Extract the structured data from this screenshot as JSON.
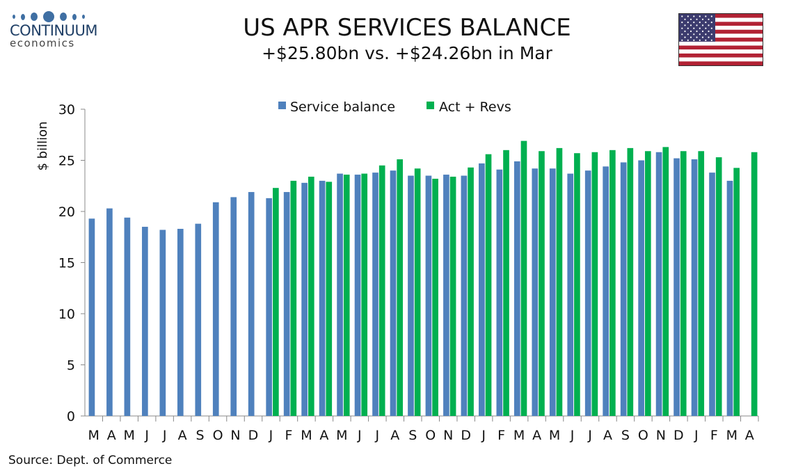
{
  "logo": {
    "name": "CONTINUUM",
    "sub": "economics"
  },
  "header": {
    "title": "US APR SERVICES BALANCE",
    "subtitle": "+$25.80bn vs. +$24.26bn in Mar"
  },
  "flag": "us-flag-icon",
  "source": "Source: Dept. of Commerce",
  "colors": {
    "blue": "#4f81bd",
    "green": "#00b050"
  },
  "chart_data": {
    "type": "bar",
    "title": "US APR SERVICES BALANCE",
    "xlabel": "",
    "ylabel": "$ billion",
    "ylim": [
      0,
      30
    ],
    "yticks": [
      0,
      5,
      10,
      15,
      20,
      25,
      30
    ],
    "legend": "top-center",
    "categories": [
      "M",
      "A",
      "M",
      "J",
      "J",
      "A",
      "S",
      "O",
      "N",
      "D",
      "J",
      "F",
      "M",
      "A",
      "M",
      "J",
      "J",
      "A",
      "S",
      "O",
      "N",
      "D",
      "J",
      "F",
      "M",
      "A",
      "M",
      "J",
      "J",
      "A",
      "S",
      "O",
      "N",
      "D",
      "J",
      "F",
      "M",
      "A"
    ],
    "series": [
      {
        "name": "Service balance",
        "values": [
          19.3,
          20.3,
          19.4,
          18.5,
          18.2,
          18.3,
          18.8,
          20.9,
          21.4,
          21.9,
          21.3,
          21.9,
          22.8,
          23.0,
          23.7,
          23.6,
          23.8,
          24.0,
          23.5,
          23.5,
          23.6,
          23.5,
          24.7,
          24.1,
          24.9,
          24.2,
          24.2,
          23.7,
          24.0,
          24.4,
          24.8,
          25.0,
          25.8,
          25.2,
          25.1,
          23.8,
          23.0,
          null
        ]
      },
      {
        "name": "Act + Revs",
        "values": [
          null,
          null,
          null,
          null,
          null,
          null,
          null,
          null,
          null,
          null,
          22.3,
          23.0,
          23.4,
          22.9,
          23.6,
          23.7,
          24.5,
          25.1,
          24.2,
          23.2,
          23.4,
          24.3,
          25.6,
          26.0,
          26.9,
          25.9,
          26.2,
          25.7,
          25.8,
          26.0,
          26.2,
          25.9,
          26.3,
          25.9,
          25.9,
          25.3,
          24.26,
          25.8
        ]
      }
    ]
  }
}
